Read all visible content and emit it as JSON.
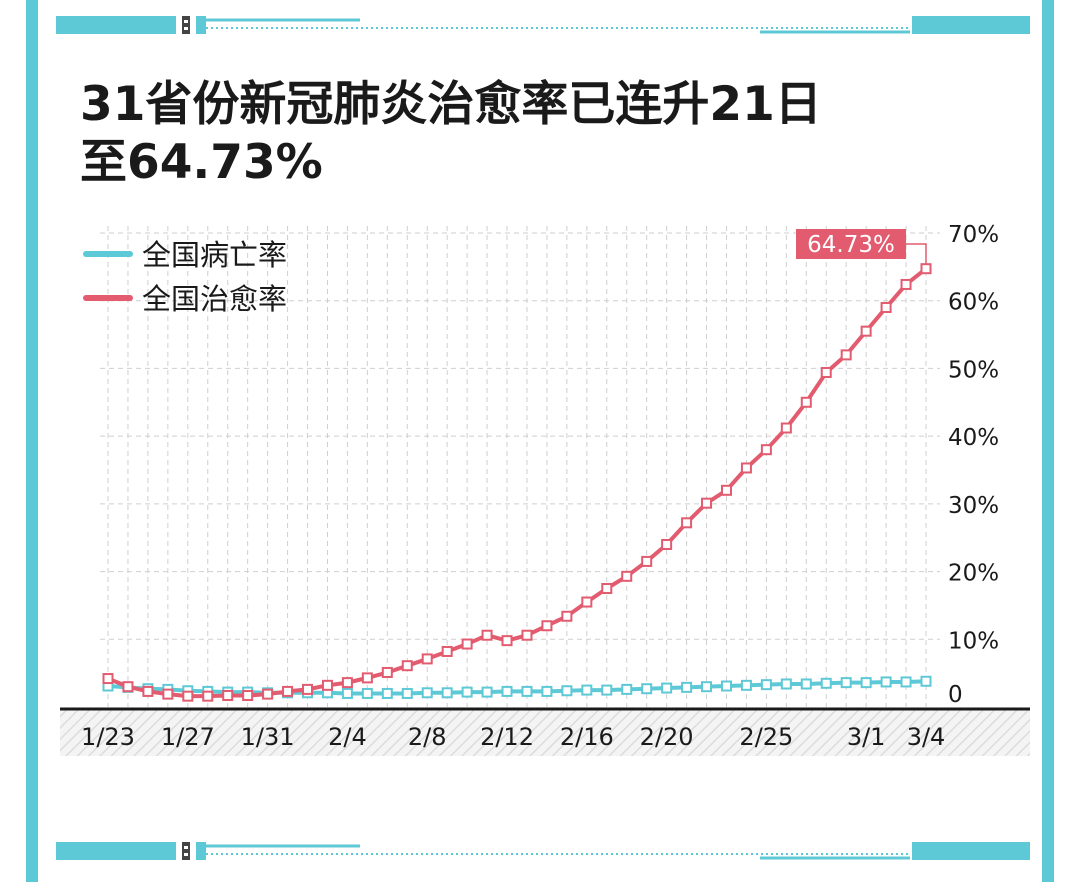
{
  "title": {
    "line1": "31省份新冠肺炎治愈率已连升21日",
    "line2": "至64.73%"
  },
  "colors": {
    "frame": "#5ec9d6",
    "cure": "#e25b6f",
    "death": "#5ec9d6",
    "text": "#1a1a1a",
    "grid": "#cfcfcf"
  },
  "chart_data": {
    "type": "line",
    "x": [
      "1/23",
      "1/24",
      "1/25",
      "1/26",
      "1/27",
      "1/28",
      "1/29",
      "1/30",
      "1/31",
      "2/1",
      "2/2",
      "2/3",
      "2/4",
      "2/5",
      "2/6",
      "2/7",
      "2/8",
      "2/9",
      "2/10",
      "2/11",
      "2/12",
      "2/13",
      "2/14",
      "2/15",
      "2/16",
      "2/17",
      "2/18",
      "2/19",
      "2/20",
      "2/21",
      "2/22",
      "2/23",
      "2/24",
      "2/25",
      "2/26",
      "2/27",
      "2/28",
      "2/29",
      "3/1",
      "3/2",
      "3/3",
      "3/4"
    ],
    "x_tick_labels": [
      "1/23",
      "1/27",
      "1/31",
      "2/4",
      "2/8",
      "2/12",
      "2/16",
      "2/20",
      "2/25",
      "3/1",
      "3/4"
    ],
    "y_ticks": [
      "0",
      "10%",
      "20%",
      "30%",
      "40%",
      "50%",
      "60%",
      "70%"
    ],
    "ylim": [
      0,
      70
    ],
    "grid": true,
    "legend": "top-left",
    "series": [
      {
        "name": "全国病亡率",
        "color": "#5ec9d6",
        "values": [
          3.1,
          2.9,
          2.7,
          2.6,
          2.4,
          2.3,
          2.2,
          2.2,
          2.1,
          2.1,
          2.1,
          2.1,
          2.0,
          2.0,
          2.0,
          2.0,
          2.1,
          2.1,
          2.2,
          2.2,
          2.3,
          2.3,
          2.3,
          2.4,
          2.5,
          2.5,
          2.6,
          2.7,
          2.8,
          2.9,
          3.0,
          3.1,
          3.2,
          3.3,
          3.4,
          3.4,
          3.5,
          3.6,
          3.6,
          3.7,
          3.7,
          3.8
        ]
      },
      {
        "name": "全国治愈率",
        "color": "#e25b6f",
        "values": [
          4.2,
          3.0,
          2.3,
          1.9,
          1.6,
          1.6,
          1.7,
          1.7,
          1.9,
          2.3,
          2.6,
          3.2,
          3.6,
          4.3,
          5.1,
          6.1,
          7.1,
          8.2,
          9.3,
          10.6,
          9.8,
          10.6,
          12.0,
          13.4,
          15.5,
          17.5,
          19.3,
          21.5,
          24.0,
          27.2,
          30.1,
          32.0,
          35.3,
          38.0,
          41.2,
          45.0,
          49.4,
          52.0,
          55.5,
          59.0,
          62.4,
          64.73
        ]
      }
    ],
    "annotations": [
      {
        "text": "64.73%",
        "series": "全国治愈率",
        "index": 41
      }
    ]
  }
}
